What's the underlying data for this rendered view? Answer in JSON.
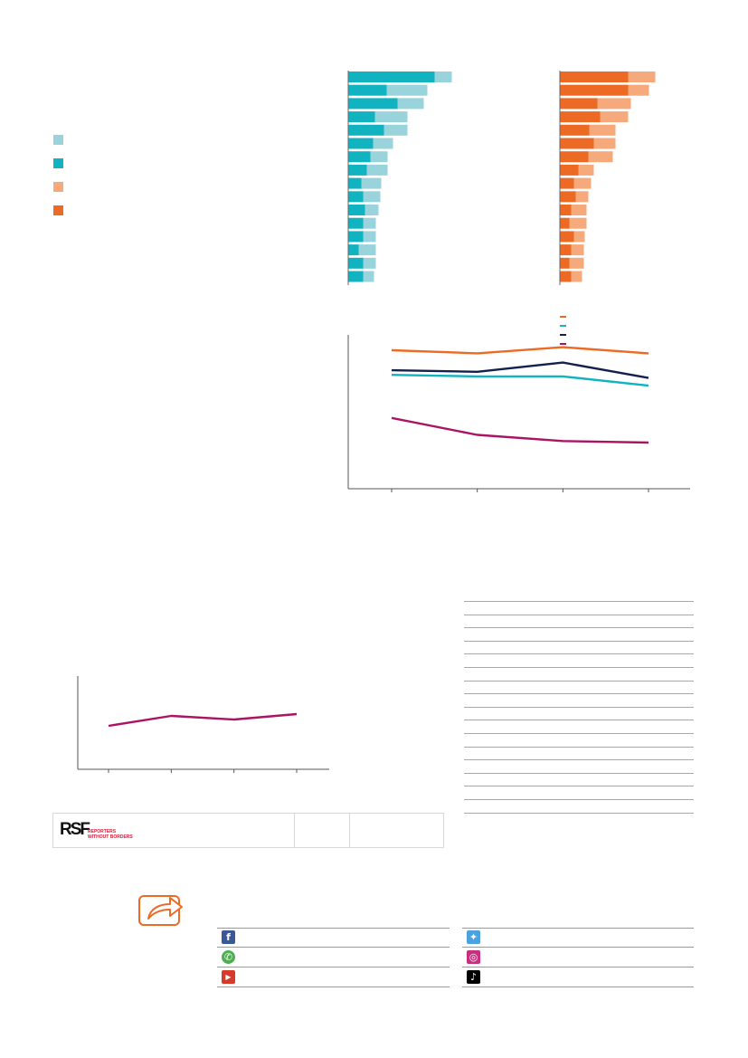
{
  "colors": {
    "teal_light": "#99d3dc",
    "teal_dark": "#11b3c0",
    "orange_light": "#f6a97a",
    "orange_dark": "#ec6a24",
    "navy": "#14204d",
    "magenta": "#ab1465",
    "share_accent": "#ec6a24",
    "rsf_red": "#d81b3c"
  },
  "legend": {
    "swatches": [
      {
        "color": "#99d3dc"
      },
      {
        "color": "#11b3c0"
      },
      {
        "color": "#f6a97a"
      },
      {
        "color": "#ec6a24"
      }
    ]
  },
  "chart_data": [
    {
      "type": "bar",
      "orientation": "horizontal",
      "stacked": true,
      "series": [
        {
          "color": "#11b3c0",
          "values": [
            95,
            42,
            54,
            29,
            39,
            27,
            24,
            20,
            14,
            16,
            18,
            16,
            16,
            11,
            16,
            16
          ]
        },
        {
          "color": "#99d3dc",
          "values": [
            19,
            45,
            29,
            36,
            26,
            22,
            19,
            23,
            22,
            19,
            15,
            14,
            14,
            19,
            14,
            12
          ]
        }
      ]
    },
    {
      "type": "bar",
      "orientation": "horizontal",
      "stacked": true,
      "series": [
        {
          "color": "#ec6a24",
          "values": [
            75,
            75,
            41,
            44,
            32,
            37,
            31,
            20,
            15,
            17,
            12,
            10,
            15,
            12,
            10,
            12
          ]
        },
        {
          "color": "#f6a97a",
          "values": [
            30,
            23,
            37,
            31,
            29,
            24,
            27,
            17,
            19,
            14,
            17,
            19,
            12,
            14,
            16,
            12
          ]
        }
      ]
    },
    {
      "type": "line",
      "x": [
        1,
        2,
        3,
        4
      ],
      "ylim": [
        0,
        100
      ],
      "series": [
        {
          "color": "#ec6a24",
          "values": [
            90,
            88,
            92,
            88
          ]
        },
        {
          "color": "#14204d",
          "values": [
            77,
            76,
            82,
            72
          ]
        },
        {
          "color": "#11b3c0",
          "values": [
            74,
            73,
            73,
            67
          ]
        },
        {
          "color": "#ab1465",
          "values": [
            46,
            35,
            31,
            30
          ]
        }
      ]
    },
    {
      "type": "line",
      "x": [
        1,
        2,
        3,
        4
      ],
      "ylim": [
        0,
        100
      ],
      "series": [
        {
          "color": "#ab1465",
          "values": [
            48,
            59,
            55,
            61
          ]
        }
      ]
    }
  ],
  "line_legend": {
    "items": [
      {
        "color": "#ec6a24"
      },
      {
        "color": "#11b3c0"
      },
      {
        "color": "#14204d"
      },
      {
        "color": "#ab1465"
      }
    ]
  },
  "rsf_panel": {
    "logo_mark": "RSF",
    "logo_line1": "REPORTERS",
    "logo_line2": "WITHOUT BORDERS"
  },
  "table": {
    "row_count": 16
  },
  "share": {
    "icon": "share-arrow-icon",
    "left_column": [
      {
        "icon": "facebook-icon",
        "glyph": "f",
        "color": "#3b5998"
      },
      {
        "icon": "whatsapp-icon",
        "glyph": "✆",
        "color": "#4caf50"
      },
      {
        "icon": "youtube-icon",
        "glyph": "▶",
        "color": "#d63a2a"
      }
    ],
    "right_column": [
      {
        "icon": "twitter-icon",
        "glyph": "✦",
        "color": "#4aa3df"
      },
      {
        "icon": "instagram-icon",
        "glyph": "◎",
        "color": "#c7307f"
      },
      {
        "icon": "tiktok-icon",
        "glyph": "♪",
        "color": "#000000"
      }
    ]
  }
}
